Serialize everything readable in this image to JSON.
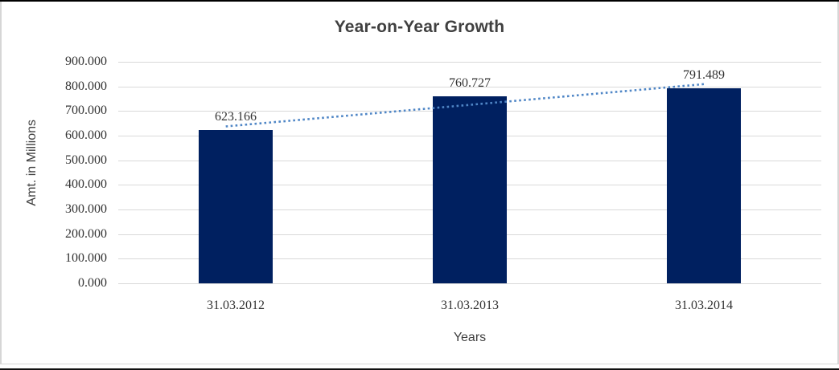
{
  "chart_data": {
    "type": "bar",
    "title": "Year-on-Year Growth",
    "xlabel": "Years",
    "ylabel": "Amt. in Millions",
    "categories": [
      "31.03.2012",
      "31.03.2013",
      "31.03.2014"
    ],
    "values": [
      623.166,
      760.727,
      791.489
    ],
    "value_labels": [
      "623.166",
      "760.727",
      "791.489"
    ],
    "ylim": [
      0,
      900
    ],
    "ytick_labels": [
      "0.000",
      "100.000",
      "200.000",
      "300.000",
      "400.000",
      "500.000",
      "600.000",
      "700.000",
      "800.000",
      "900.000"
    ],
    "grid": true,
    "legend_position": "none",
    "trendline": {
      "type": "linear",
      "style": "dotted"
    },
    "colors": {
      "bar": "#002060",
      "trendline": "#4f86c6",
      "gridline": "#d9d9d9",
      "text": "#404040",
      "frame_border": "#d6d6d6"
    }
  }
}
